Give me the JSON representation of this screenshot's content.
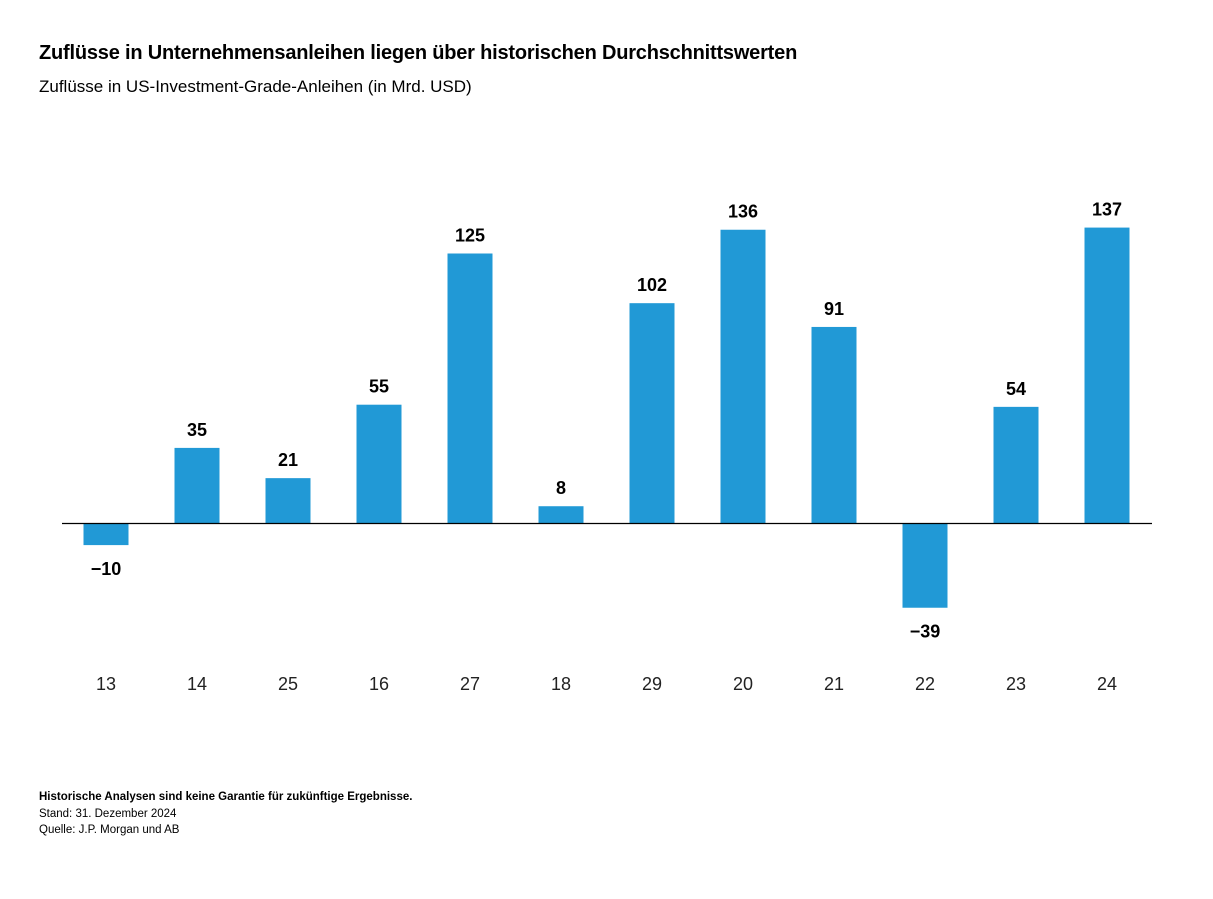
{
  "header": {
    "title": "Zuflüsse in Unternehmensanleihen liegen über historischen Durchschnittswerten",
    "subtitle": "Zuflüsse in US-Investment-Grade-Anleihen (in Mrd. USD)"
  },
  "footer": {
    "disclaimer": "Historische Analysen sind keine Garantie für zukünftige Ergebnisse.",
    "date": "Stand: 31. Dezember 2024",
    "source": "Quelle: J.P. Morgan und AB"
  },
  "chart_data": {
    "type": "bar",
    "title": "Zuflüsse in Unternehmensanleihen liegen über historischen Durchschnittswerten",
    "subtitle": "Zuflüsse in US-Investment-Grade-Anleihen (in Mrd. USD)",
    "xlabel": "",
    "ylabel": "",
    "categories": [
      "13",
      "14",
      "25",
      "16",
      "27",
      "18",
      "29",
      "20",
      "21",
      "22",
      "23",
      "24"
    ],
    "values": [
      -10,
      35,
      21,
      55,
      125,
      8,
      102,
      136,
      91,
      -39,
      54,
      137
    ],
    "data_labels": [
      "−10",
      "35",
      "21",
      "55",
      "125",
      "8",
      "102",
      "136",
      "91",
      "−39",
      "54",
      "137"
    ],
    "ylim": [
      -39,
      137
    ],
    "grid": false,
    "legend": "none",
    "bar_color": "#2199d6",
    "baseline_color": "#000000"
  }
}
